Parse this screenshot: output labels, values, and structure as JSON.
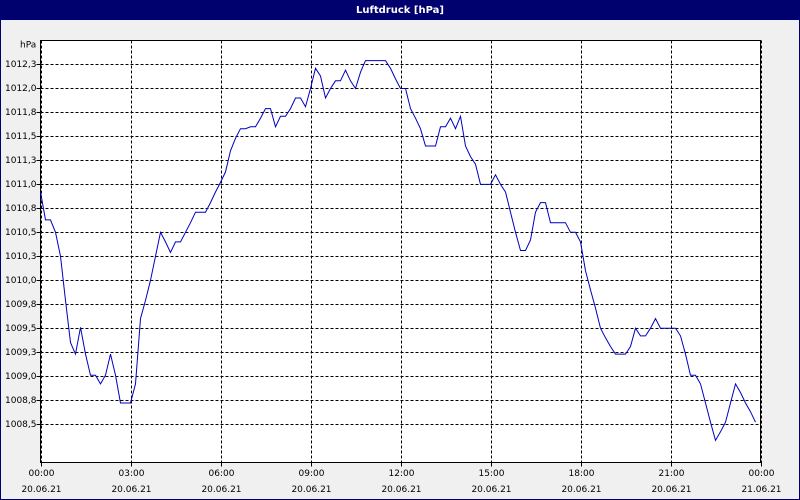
{
  "chart_data": {
    "type": "line",
    "title": "Luftdruck [hPa]",
    "y_label": "hPa",
    "x": [
      0,
      10,
      20,
      30,
      40,
      50,
      60,
      70,
      80,
      90,
      100,
      110,
      120,
      130,
      140,
      150,
      160,
      170,
      180,
      190,
      200,
      210,
      220,
      230,
      240,
      250,
      260,
      270,
      280,
      290,
      300,
      310,
      320,
      330,
      340,
      350,
      360,
      370,
      380,
      390,
      400,
      410,
      420,
      430,
      440,
      450,
      460,
      470,
      480,
      490,
      500,
      510,
      520,
      530,
      540,
      550,
      560,
      570,
      580,
      590,
      600,
      610,
      620,
      630,
      640,
      650,
      660,
      670,
      680,
      690,
      700,
      710,
      720,
      730,
      740,
      750,
      760,
      770,
      780,
      790,
      800,
      810,
      820,
      830,
      840,
      850,
      860,
      870,
      880,
      890,
      900,
      910,
      920,
      930,
      940,
      950,
      960,
      970,
      980,
      990,
      1000,
      1010,
      1020,
      1030,
      1040,
      1050,
      1060,
      1070,
      1080,
      1090,
      1100,
      1110,
      1120,
      1130,
      1140,
      1150,
      1160,
      1170,
      1180,
      1190,
      1200,
      1210,
      1220,
      1230,
      1240,
      1250,
      1260,
      1270,
      1280,
      1290,
      1300,
      1310,
      1320,
      1330,
      1340,
      1350,
      1360,
      1370,
      1380,
      1390,
      1400,
      1410,
      1420,
      1430
    ],
    "series": [
      {
        "name": "Luftdruck",
        "color": "#0000c0",
        "values": [
          1010.92,
          1010.63,
          1010.63,
          1010.5,
          1010.25,
          1009.79,
          1009.35,
          1009.23,
          1009.51,
          1009.23,
          1009.01,
          1009.01,
          1008.92,
          1009.01,
          1009.23,
          1009.01,
          1008.72,
          1008.72,
          1008.72,
          1008.92,
          1009.6,
          1009.79,
          1010.0,
          1010.25,
          1010.5,
          1010.4,
          1010.29,
          1010.4,
          1010.4,
          1010.5,
          1010.6,
          1010.71,
          1010.71,
          1010.71,
          1010.81,
          1010.92,
          1011.02,
          1011.13,
          1011.35,
          1011.48,
          1011.58,
          1011.58,
          1011.6,
          1011.6,
          1011.69,
          1011.79,
          1011.79,
          1011.6,
          1011.71,
          1011.71,
          1011.79,
          1011.9,
          1011.9,
          1011.81,
          1012.0,
          1012.21,
          1012.13,
          1011.9,
          1012.0,
          1012.08,
          1012.08,
          1012.19,
          1012.08,
          1012.0,
          1012.17,
          1012.29,
          1012.29,
          1012.29,
          1012.29,
          1012.29,
          1012.21,
          1012.1,
          1012.0,
          1012.0,
          1011.79,
          1011.69,
          1011.58,
          1011.4,
          1011.4,
          1011.4,
          1011.6,
          1011.6,
          1011.69,
          1011.58,
          1011.71,
          1011.4,
          1011.29,
          1011.21,
          1011.0,
          1011.0,
          1011.0,
          1011.1,
          1011.0,
          1010.92,
          1010.71,
          1010.5,
          1010.31,
          1010.31,
          1010.42,
          1010.71,
          1010.81,
          1010.81,
          1010.6,
          1010.6,
          1010.6,
          1010.6,
          1010.5,
          1010.5,
          1010.4,
          1010.1,
          1009.9,
          1009.71,
          1009.5,
          1009.4,
          1009.31,
          1009.23,
          1009.23,
          1009.23,
          1009.31,
          1009.5,
          1009.42,
          1009.42,
          1009.5,
          1009.6,
          1009.5,
          1009.5,
          1009.5,
          1009.5,
          1009.42,
          1009.23,
          1009.01,
          1009.01,
          1008.92,
          1008.72,
          1008.52,
          1008.33,
          1008.42,
          1008.52,
          1008.72,
          1008.92,
          1008.83,
          1008.72,
          1008.63,
          1008.52
        ]
      }
    ],
    "xlim": [
      0,
      1440
    ],
    "xticks": [
      {
        "value": 0,
        "label": "00:00"
      },
      {
        "value": 180,
        "label": "03:00"
      },
      {
        "value": 360,
        "label": "06:00"
      },
      {
        "value": 540,
        "label": "09:00"
      },
      {
        "value": 720,
        "label": "12:00"
      },
      {
        "value": 900,
        "label": "15:00"
      },
      {
        "value": 1080,
        "label": "18:00"
      },
      {
        "value": 1260,
        "label": "21:00"
      },
      {
        "value": 1440,
        "label": "00:00"
      }
    ],
    "xtick_dates": [
      "20.06.21",
      "20.06.21",
      "20.06.21",
      "20.06.21",
      "20.06.21",
      "20.06.21",
      "20.06.21",
      "20.06.21",
      "21.06.21"
    ],
    "ylim": [
      1008.1,
      1012.5
    ],
    "yticks": [
      {
        "value": 1012.25,
        "label": "1012,3"
      },
      {
        "value": 1012.0,
        "label": "1012,0"
      },
      {
        "value": 1011.75,
        "label": "1011,8"
      },
      {
        "value": 1011.5,
        "label": "1011,5"
      },
      {
        "value": 1011.25,
        "label": "1011,3"
      },
      {
        "value": 1011.0,
        "label": "1011,0"
      },
      {
        "value": 1010.75,
        "label": "1010,8"
      },
      {
        "value": 1010.5,
        "label": "1010,5"
      },
      {
        "value": 1010.25,
        "label": "1010,3"
      },
      {
        "value": 1010.0,
        "label": "1010,0"
      },
      {
        "value": 1009.75,
        "label": "1009,8"
      },
      {
        "value": 1009.5,
        "label": "1009,5"
      },
      {
        "value": 1009.25,
        "label": "1009,3"
      },
      {
        "value": 1009.0,
        "label": "1009,0"
      },
      {
        "value": 1008.75,
        "label": "1008,8"
      },
      {
        "value": 1008.5,
        "label": "1008,5"
      }
    ],
    "grid": true
  }
}
